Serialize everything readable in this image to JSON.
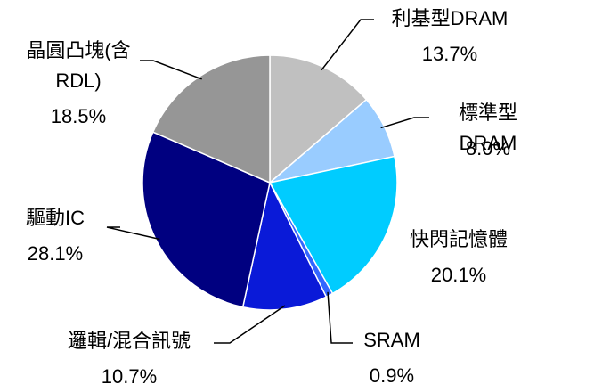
{
  "chart_data": {
    "type": "pie",
    "categories": [
      "利基型DRAM",
      "標準型DRAM",
      "快閃記憶體",
      "SRAM",
      "邏輯/混合訊號",
      "驅動IC",
      "晶圓凸塊(含\nRDL)"
    ],
    "values": [
      13.7,
      8.0,
      20.1,
      0.9,
      10.7,
      28.1,
      18.5
    ],
    "value_labels": [
      "13.7%",
      "8.0%",
      "20.1%",
      "0.9%",
      "10.7%",
      "28.1%",
      "18.5%"
    ],
    "colors": [
      "#c0c0c0",
      "#99ccff",
      "#00ccff",
      "#3366ff",
      "#0a1ad8",
      "#000080",
      "#969696"
    ]
  }
}
